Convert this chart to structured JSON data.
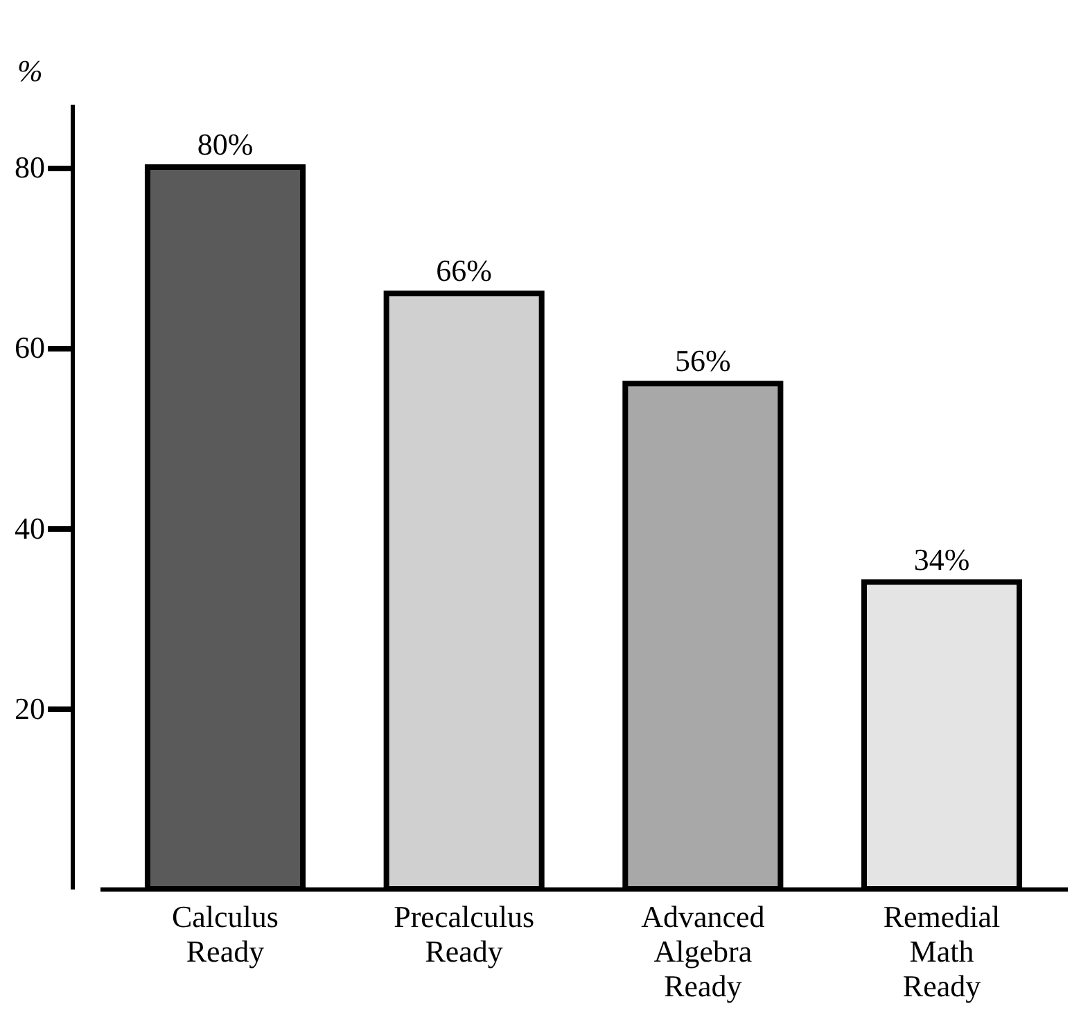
{
  "chart_data": {
    "type": "bar",
    "ylabel": "%",
    "categories": [
      "Calculus Ready",
      "Precalculus Ready",
      "Advanced Algebra Ready",
      "Remedial Math Ready"
    ],
    "values": [
      80,
      66,
      56,
      34
    ],
    "colors": [
      "#5a5a5a",
      "#d0d0d0",
      "#a8a8a8",
      "#e4e4e4"
    ],
    "value_labels": [
      "80%",
      "66%",
      "56%",
      "34%"
    ],
    "ylim": [
      0,
      87
    ],
    "yticks": [
      20,
      40,
      60,
      80
    ],
    "grid": false,
    "legend": false
  }
}
